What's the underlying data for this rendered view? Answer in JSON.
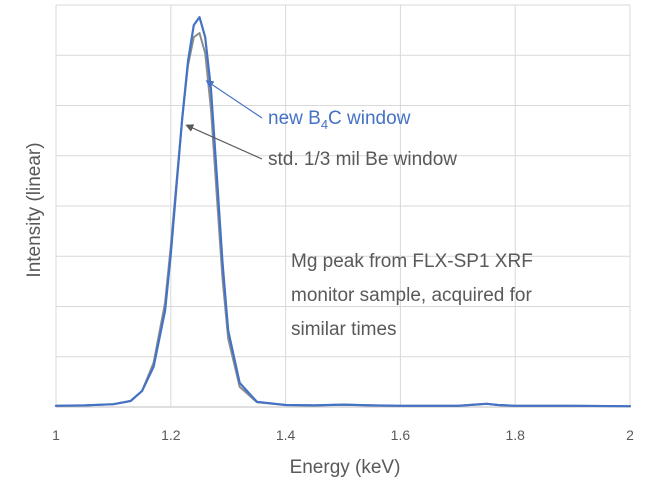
{
  "chart_data": {
    "type": "line",
    "title": "",
    "xlabel": "Energy (keV)",
    "ylabel": "Intensity (linear)",
    "xlim": [
      1,
      2
    ],
    "ylim": [
      0,
      100
    ],
    "x_ticks": [
      1,
      1.2,
      1.4,
      1.6,
      1.8,
      2
    ],
    "x_tick_labels": [
      "1",
      "1.2",
      "1.4",
      "1.6",
      "1.8",
      "2"
    ],
    "y_tick_labels_shown": false,
    "grid": true,
    "legend": "none",
    "series": [
      {
        "name": "std. 1/3 mil Be window",
        "color": "#8c8c8c",
        "x": [
          1.0,
          1.05,
          1.1,
          1.13,
          1.15,
          1.17,
          1.19,
          1.2,
          1.21,
          1.22,
          1.23,
          1.24,
          1.25,
          1.26,
          1.27,
          1.28,
          1.29,
          1.3,
          1.32,
          1.35,
          1.4,
          1.45,
          1.5,
          1.55,
          1.6,
          1.7,
          1.73,
          1.75,
          1.77,
          1.8,
          1.9,
          2.0
        ],
        "y": [
          0.3,
          0.4,
          0.7,
          1.5,
          4,
          11,
          26,
          40,
          56,
          72,
          85,
          92,
          93,
          88,
          74,
          53,
          32,
          17,
          5,
          1.2,
          0.5,
          0.4,
          0.6,
          0.4,
          0.3,
          0.3,
          0.6,
          0.8,
          0.5,
          0.3,
          0.3,
          0.2
        ]
      },
      {
        "name": "new B4C window",
        "color": "#4472c4",
        "x": [
          1.0,
          1.05,
          1.1,
          1.13,
          1.15,
          1.17,
          1.19,
          1.2,
          1.21,
          1.22,
          1.23,
          1.24,
          1.25,
          1.26,
          1.27,
          1.28,
          1.29,
          1.3,
          1.32,
          1.35,
          1.4,
          1.45,
          1.5,
          1.55,
          1.6,
          1.7,
          1.73,
          1.75,
          1.77,
          1.8,
          1.9,
          2.0
        ],
        "y": [
          0.3,
          0.4,
          0.7,
          1.5,
          4,
          10,
          24,
          38,
          55,
          72,
          86,
          95,
          97,
          92,
          79,
          58,
          36,
          19,
          6,
          1.3,
          0.5,
          0.4,
          0.6,
          0.4,
          0.3,
          0.3,
          0.6,
          0.8,
          0.5,
          0.3,
          0.3,
          0.2
        ]
      }
    ],
    "annotations": [
      {
        "id": "b4c",
        "text_prefix": "new B",
        "subscript": "4",
        "text_suffix": "C window",
        "color": "#4472c4",
        "arrow_to": {
          "x": 1.26,
          "y": 81
        }
      },
      {
        "id": "be",
        "text": "std. 1/3 mil Be window",
        "color": "#595959",
        "arrow_to": {
          "x": 1.225,
          "y": 70
        }
      },
      {
        "id": "note",
        "lines": [
          "Mg peak from FLX-SP1 XRF",
          "monitor sample, acquired for",
          "similar times"
        ],
        "color": "#595959"
      }
    ]
  }
}
